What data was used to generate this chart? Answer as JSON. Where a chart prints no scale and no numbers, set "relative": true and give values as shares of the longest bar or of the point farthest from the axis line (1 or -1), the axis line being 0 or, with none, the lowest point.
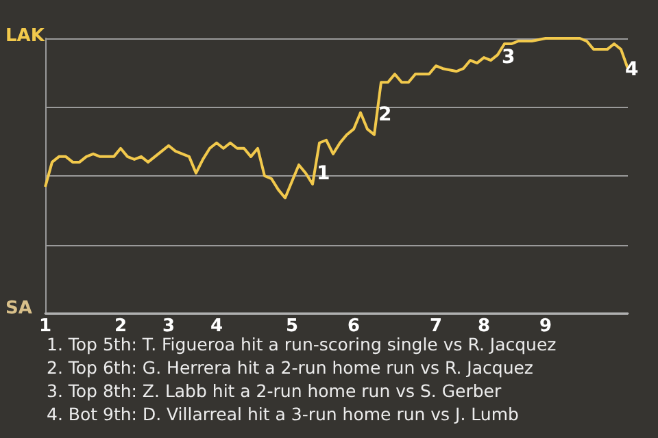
{
  "chart_data": {
    "type": "line",
    "categories": [
      "1",
      null,
      null,
      null,
      null,
      null,
      null,
      null,
      null,
      null,
      null,
      "2",
      null,
      null,
      null,
      null,
      null,
      null,
      "3",
      null,
      null,
      null,
      null,
      null,
      null,
      "4",
      null,
      null,
      null,
      null,
      null,
      null,
      null,
      null,
      null,
      null,
      "5",
      null,
      null,
      null,
      null,
      null,
      null,
      null,
      null,
      "6",
      null,
      null,
      null,
      null,
      null,
      null,
      null,
      null,
      null,
      null,
      null,
      "7",
      null,
      null,
      null,
      null,
      null,
      null,
      "8",
      null,
      null,
      null,
      null,
      null,
      null,
      null,
      null,
      "9",
      null,
      null,
      null,
      null,
      null,
      null,
      null,
      null,
      null,
      null,
      null,
      null
    ],
    "series": [
      {
        "color": "#f2c94c",
        "values": [
          0.46,
          0.55,
          0.57,
          0.57,
          0.55,
          0.55,
          0.57,
          0.58,
          0.57,
          null,
          0.57,
          0.6,
          0.57,
          0.56,
          0.57,
          0.55,
          0.57,
          0.59,
          0.61,
          0.59,
          0.58,
          0.57,
          0.51,
          0.56,
          0.6,
          0.62,
          0.6,
          0.62,
          0.6,
          0.6,
          0.57,
          0.6,
          0.5,
          0.49,
          0.45,
          0.42,
          0.48,
          0.54,
          0.51,
          0.47,
          0.62,
          0.63,
          0.58,
          0.62,
          0.65,
          0.67,
          0.73,
          0.67,
          0.65,
          0.84,
          0.84,
          0.87,
          0.84,
          0.84,
          0.87,
          null,
          0.87,
          0.9,
          0.89,
          null,
          0.88,
          0.89,
          0.92,
          0.91,
          0.93,
          0.92,
          0.94,
          0.98,
          0.98,
          0.99,
          null,
          0.99,
          null,
          1.0,
          null,
          null,
          null,
          null,
          1.0,
          0.99,
          0.96,
          null,
          0.96,
          0.98,
          0.96,
          0.89
        ]
      }
    ],
    "relative": true,
    "grid": "y",
    "annotations": [
      "LAK",
      "SA",
      "1. Top 5th: T. Figueroa hit a run-scoring single vs R. Jacquez",
      "2. Top 6th: G. Herrera hit a 2-run home run vs R. Jacquez",
      "3. Top 8th: Z. Labb hit a 2-run home run vs S. Gerber",
      "4. Bot 9th: D. Villarreal hit a 3-run home run vs J. Lumb",
      "1",
      "2",
      "3",
      "4"
    ],
    "marker": "none"
  }
}
